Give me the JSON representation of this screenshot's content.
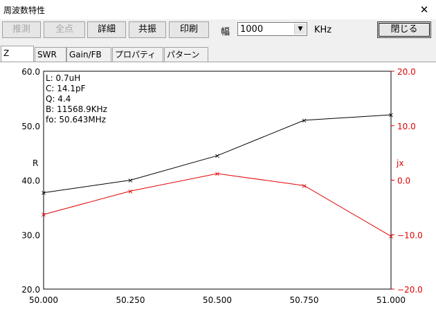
{
  "window": {
    "title": "周波数特性",
    "close_glyph": "✕"
  },
  "toolbar": {
    "buttons": [
      {
        "id": "estimate",
        "label": "推測",
        "enabled": false
      },
      {
        "id": "all_points",
        "label": "全点",
        "enabled": false
      },
      {
        "id": "detail",
        "label": "詳細",
        "enabled": true
      },
      {
        "id": "resonance",
        "label": "共振",
        "enabled": true
      },
      {
        "id": "print",
        "label": "印刷",
        "enabled": true
      }
    ],
    "width_label": "幅",
    "width_value": "1000",
    "unit": "KHz",
    "close_label": "閉じる"
  },
  "tabs": [
    {
      "label": "Z",
      "active": true
    },
    {
      "label": "SWR",
      "active": false
    },
    {
      "label": "Gain/FB",
      "active": false
    },
    {
      "label": "プロパティ",
      "active": false
    },
    {
      "label": "パターン",
      "active": false
    }
  ],
  "info_box": {
    "lines": [
      "L: 0.7uH",
      "C: 14.1pF",
      "Q: 4.4",
      "B: 11568.9KHz",
      "fo: 50.643MHz"
    ]
  },
  "colors": {
    "r_series": "#000000",
    "jx_series": "#e00000",
    "right_axis": "#e00000"
  },
  "chart_data": {
    "type": "line",
    "x": [
      50.0,
      50.25,
      50.5,
      50.75,
      51.0
    ],
    "x_tick_labels": [
      "50.000",
      "50.250",
      "50.500",
      "50.750",
      "51.000"
    ],
    "xlim": [
      50.0,
      51.0
    ],
    "ylabel_left": "R",
    "ylabel_right": "jx",
    "ylim_left": [
      20,
      60
    ],
    "ylim_right": [
      -20,
      20
    ],
    "y_ticks_left": [
      "60.0",
      "50.0",
      "40.0",
      "30.0",
      "20.0"
    ],
    "y_ticks_right": [
      "20.0",
      "10.0",
      "0.0",
      "−10.0",
      "−20.0"
    ],
    "series": [
      {
        "axis": "left",
        "values": [
          37.7,
          40.0,
          44.5,
          51.0,
          52.0
        ]
      },
      {
        "axis": "right",
        "values": [
          -6.3,
          -2.0,
          1.2,
          -1.0,
          -10.3
        ]
      }
    ],
    "grid": false,
    "marker": "x"
  }
}
